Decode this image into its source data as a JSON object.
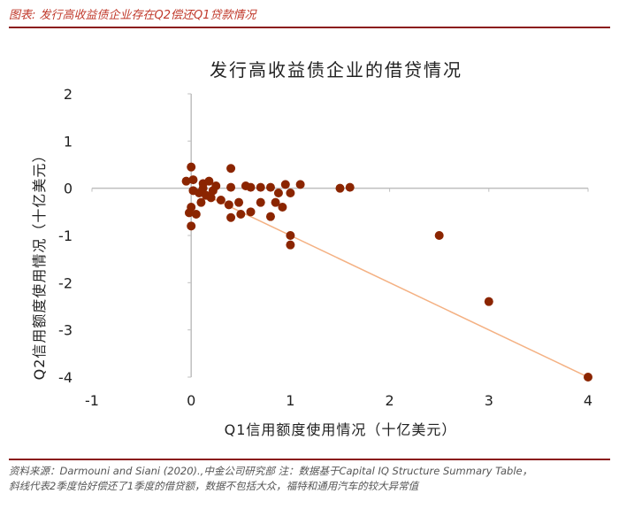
{
  "figure_caption": "图表: 发行高收益债企业存在Q2偿还Q1贷款情况",
  "source_line1": "资料来源：Darmouni and    Siani (2020).,中金公司研究部      注：数据基于Capital IQ Structure Summary Table，",
  "source_line2": "斜线代表2季度恰好偿还了1季度的借贷额，数据不包括大众，福特和通用汽车的较大异常值",
  "colors": {
    "caption": "#c0392b",
    "rule": "#8b1a1a",
    "point": "#8b2500",
    "trendline": "#f4b183",
    "axis": "#bfbfbf"
  },
  "chart_data": {
    "type": "scatter",
    "title": "发行高收益债企业的借贷情况",
    "xlabel": "Q1信用额度使用情况（十亿美元）",
    "ylabel": "Q2信用额度使用情况（十亿美元）",
    "xlim": [
      -1,
      4
    ],
    "ylim": [
      -4,
      2
    ],
    "xticks": [
      "-1",
      "0",
      "1",
      "2",
      "3",
      "4"
    ],
    "yticks": [
      "2",
      "1",
      "0",
      "-1",
      "-2",
      "-3",
      "-4"
    ],
    "grid": false,
    "legend": "none",
    "points": [
      {
        "x": 0.0,
        "y": 0.45
      },
      {
        "x": 0.4,
        "y": 0.42
      },
      {
        "x": -0.05,
        "y": 0.15
      },
      {
        "x": 0.02,
        "y": 0.18
      },
      {
        "x": 0.12,
        "y": 0.1
      },
      {
        "x": 0.18,
        "y": 0.15
      },
      {
        "x": 0.25,
        "y": 0.05
      },
      {
        "x": 0.4,
        "y": 0.02
      },
      {
        "x": 0.55,
        "y": 0.05
      },
      {
        "x": 0.6,
        "y": 0.02
      },
      {
        "x": 0.7,
        "y": 0.02
      },
      {
        "x": 0.8,
        "y": 0.02
      },
      {
        "x": 0.95,
        "y": 0.08
      },
      {
        "x": 1.1,
        "y": 0.08
      },
      {
        "x": 1.5,
        "y": 0.0
      },
      {
        "x": 1.6,
        "y": 0.02
      },
      {
        "x": 0.02,
        "y": -0.05
      },
      {
        "x": 0.08,
        "y": -0.1
      },
      {
        "x": 0.12,
        "y": 0.0
      },
      {
        "x": 0.15,
        "y": -0.15
      },
      {
        "x": 0.2,
        "y": -0.2
      },
      {
        "x": 0.22,
        "y": -0.05
      },
      {
        "x": 0.3,
        "y": -0.25
      },
      {
        "x": 0.38,
        "y": -0.35
      },
      {
        "x": 0.48,
        "y": -0.3
      },
      {
        "x": 0.5,
        "y": -0.55
      },
      {
        "x": 0.6,
        "y": -0.5
      },
      {
        "x": 0.7,
        "y": -0.3
      },
      {
        "x": 0.8,
        "y": -0.6
      },
      {
        "x": 0.88,
        "y": -0.1
      },
      {
        "x": 0.92,
        "y": -0.4
      },
      {
        "x": 1.0,
        "y": -0.1
      },
      {
        "x": 0.85,
        "y": -0.3
      },
      {
        "x": 0.0,
        "y": -0.4
      },
      {
        "x": -0.02,
        "y": -0.52
      },
      {
        "x": 0.05,
        "y": -0.55
      },
      {
        "x": 0.1,
        "y": -0.3
      },
      {
        "x": 0.4,
        "y": -0.62
      },
      {
        "x": 0.0,
        "y": -0.8
      },
      {
        "x": 1.0,
        "y": -1.0
      },
      {
        "x": 1.0,
        "y": -1.2
      },
      {
        "x": 2.5,
        "y": -1.0
      },
      {
        "x": 3.0,
        "y": -2.4
      },
      {
        "x": 4.0,
        "y": -4.0
      }
    ],
    "trendline": {
      "from": [
        0,
        0
      ],
      "to": [
        4,
        -4
      ]
    }
  }
}
